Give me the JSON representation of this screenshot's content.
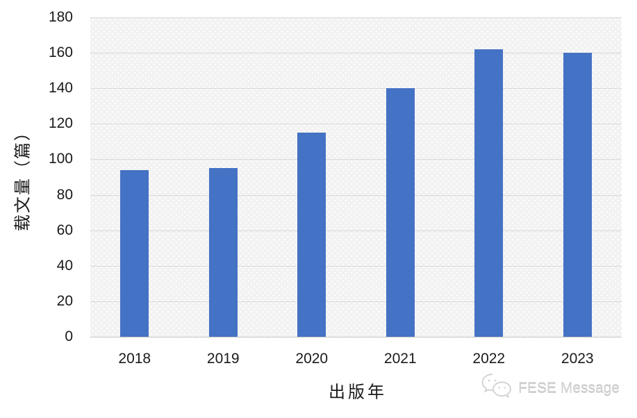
{
  "chart_data": {
    "type": "bar",
    "categories": [
      "2018",
      "2019",
      "2020",
      "2021",
      "2022",
      "2023"
    ],
    "values": [
      94,
      95,
      115,
      140,
      162,
      160
    ],
    "title": "",
    "xlabel": "出版年",
    "ylabel": "载文量（篇）",
    "ylim": [
      0,
      180
    ],
    "yticks": [
      0,
      20,
      40,
      60,
      80,
      100,
      120,
      140,
      160,
      180
    ],
    "bar_color": "#4472C4",
    "plot_bg": "#f2f2f2",
    "gridline_color": "#d9d9d9",
    "grid": "on",
    "legend": "none"
  },
  "watermark": {
    "label": "FESE Message",
    "icon": "wechat-icon",
    "color": "#d2d2d2"
  }
}
